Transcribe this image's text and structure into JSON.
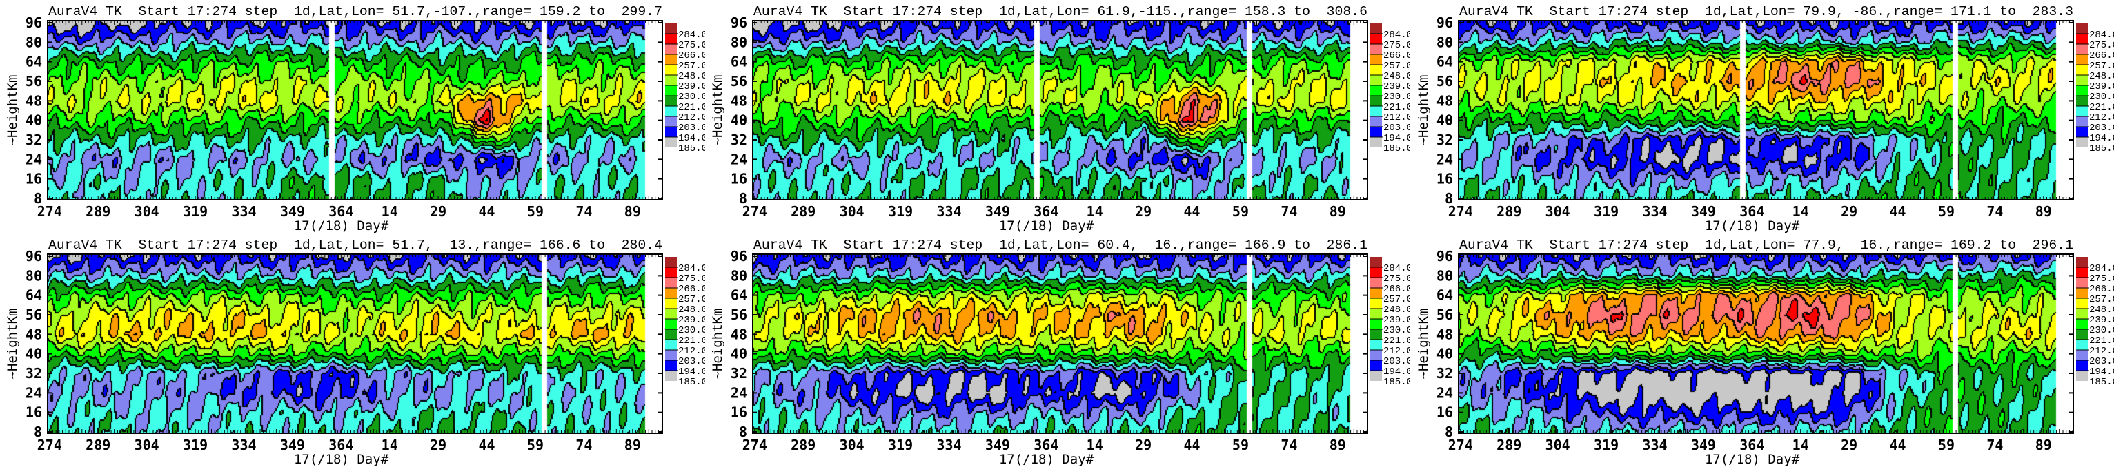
{
  "colorbar": {
    "levels": [
      185.0,
      194.0,
      203.0,
      212.0,
      221.0,
      230.0,
      239.0,
      248.0,
      257.0,
      266.0,
      275.0,
      284.0
    ],
    "labels": [
      "185.0",
      "194.0",
      "203.0",
      "212.0",
      "221.0",
      "230.0",
      "239.0",
      "248.0",
      "257.0",
      "266.0",
      "275.0",
      "284.0"
    ],
    "colors": [
      "#c8c8c8",
      "#0000ff",
      "#8484f0",
      "#40ffe8",
      "#12a012",
      "#00ff00",
      "#a6ff1c",
      "#ffff00",
      "#ff9c00",
      "#ff7474",
      "#ff0000",
      "#a82424"
    ]
  },
  "chart_data": [
    {
      "type": "heatmap",
      "title": "AuraV4 TK  Start 17:274 step  1d,Lat,Lon= 51.7,-107.,range= 159.2 to  299.7",
      "xlabel": "17(/18) Day#",
      "ylabel": "~HeightKm",
      "gaps": [
        [
          360,
          362
        ],
        [
          425.5,
          427.5
        ]
      ],
      "z": [
        [
          188,
          188,
          192,
          196,
          196,
          196,
          198,
          196,
          196,
          194,
          196,
          196,
          196
        ],
        [
          206,
          208,
          210,
          212,
          214,
          214,
          212,
          212,
          212,
          210,
          214,
          214,
          214
        ],
        [
          230,
          230,
          228,
          232,
          234,
          235,
          230,
          230,
          228,
          226,
          232,
          234,
          232
        ],
        [
          240,
          241,
          242,
          244,
          246,
          244,
          242,
          240,
          238,
          236,
          244,
          244,
          244
        ],
        [
          244,
          246,
          248,
          250,
          252,
          248,
          246,
          244,
          246,
          266,
          250,
          250,
          252
        ],
        [
          234,
          236,
          236,
          236,
          234,
          232,
          234,
          232,
          230,
          278,
          232,
          234,
          236
        ],
        [
          222,
          220,
          221,
          222,
          220,
          218,
          216,
          216,
          210,
          238,
          218,
          216,
          218
        ],
        [
          210,
          208,
          208,
          210,
          210,
          212,
          210,
          206,
          202,
          196,
          208,
          210,
          212
        ],
        [
          215,
          216,
          214,
          216,
          218,
          222,
          224,
          218,
          222,
          206,
          216,
          218,
          218
        ],
        [
          218,
          216,
          218,
          216,
          218,
          224,
          226,
          220,
          224,
          212,
          218,
          218,
          218
        ]
      ]
    },
    {
      "type": "heatmap",
      "title": "AuraV4 TK  Start 17:274 step  1d,Lat,Lon= 61.9,-115.,range= 158.3 to  308.6",
      "xlabel": "17(/18) Day#",
      "ylabel": "~HeightKm",
      "gaps": [
        [
          360,
          362
        ],
        [
          425.5,
          427.5
        ]
      ],
      "z": [
        [
          190,
          190,
          194,
          196,
          198,
          196,
          198,
          198,
          198,
          196,
          196,
          196,
          196
        ],
        [
          208,
          208,
          210,
          212,
          214,
          212,
          212,
          210,
          210,
          210,
          212,
          214,
          214
        ],
        [
          232,
          232,
          232,
          236,
          238,
          236,
          232,
          232,
          230,
          228,
          234,
          236,
          236
        ],
        [
          242,
          244,
          246,
          248,
          250,
          248,
          244,
          242,
          240,
          240,
          246,
          246,
          246
        ],
        [
          244,
          246,
          250,
          252,
          252,
          250,
          246,
          244,
          246,
          270,
          248,
          250,
          250
        ],
        [
          234,
          234,
          236,
          236,
          234,
          232,
          230,
          230,
          228,
          282,
          232,
          232,
          234
        ],
        [
          222,
          222,
          222,
          222,
          220,
          218,
          216,
          216,
          208,
          236,
          218,
          220,
          218
        ],
        [
          210,
          210,
          210,
          212,
          212,
          214,
          212,
          208,
          200,
          198,
          210,
          212,
          212
        ],
        [
          216,
          216,
          216,
          218,
          220,
          222,
          224,
          218,
          222,
          208,
          216,
          218,
          218
        ],
        [
          218,
          218,
          218,
          218,
          220,
          224,
          226,
          222,
          224,
          214,
          218,
          220,
          220
        ]
      ]
    },
    {
      "type": "heatmap",
      "title": "AuraV4 TK  Start 17:274 step  1d,Lat,Lon= 79.9, -86.,range= 171.1 to  283.3",
      "xlabel": "17(/18) Day#",
      "ylabel": "~HeightKm",
      "gaps": [
        [
          360,
          362
        ],
        [
          425.5,
          427.5
        ]
      ],
      "z": [
        [
          196,
          196,
          198,
          198,
          198,
          198,
          198,
          196,
          196,
          196,
          198,
          198,
          198
        ],
        [
          214,
          214,
          216,
          218,
          220,
          218,
          218,
          216,
          214,
          214,
          218,
          220,
          220
        ],
        [
          240,
          242,
          246,
          248,
          252,
          250,
          256,
          262,
          262,
          250,
          244,
          244,
          246
        ],
        [
          246,
          248,
          250,
          252,
          256,
          256,
          262,
          270,
          268,
          256,
          248,
          250,
          252
        ],
        [
          244,
          244,
          246,
          246,
          248,
          248,
          250,
          254,
          252,
          250,
          244,
          242,
          242
        ],
        [
          228,
          228,
          228,
          228,
          230,
          230,
          232,
          236,
          236,
          240,
          234,
          232,
          230
        ],
        [
          216,
          212,
          206,
          204,
          198,
          196,
          200,
          200,
          202,
          214,
          222,
          222,
          222
        ],
        [
          214,
          208,
          202,
          198,
          192,
          190,
          198,
          194,
          200,
          214,
          222,
          222,
          220
        ],
        [
          218,
          216,
          212,
          210,
          208,
          210,
          214,
          210,
          212,
          222,
          224,
          222,
          218
        ],
        [
          220,
          220,
          218,
          216,
          218,
          220,
          222,
          220,
          222,
          226,
          226,
          224,
          220
        ]
      ]
    },
    {
      "type": "heatmap",
      "title": "AuraV4 TK  Start 17:274 step  1d,Lat,Lon= 51.7,  13.,range= 166.6 to  280.4",
      "xlabel": "17(/18) Day#",
      "ylabel": "~HeightKm",
      "gaps": [
        [
          425.5,
          427.5
        ]
      ],
      "z": [
        [
          194,
          196,
          196,
          198,
          198,
          198,
          196,
          196,
          198,
          198,
          198,
          198,
          198
        ],
        [
          210,
          212,
          214,
          214,
          214,
          214,
          212,
          212,
          214,
          214,
          214,
          216,
          216
        ],
        [
          234,
          236,
          238,
          238,
          240,
          238,
          232,
          236,
          236,
          234,
          236,
          236,
          236
        ],
        [
          246,
          250,
          252,
          254,
          252,
          250,
          244,
          248,
          250,
          246,
          248,
          250,
          250
        ],
        [
          248,
          256,
          258,
          256,
          256,
          254,
          246,
          252,
          258,
          250,
          256,
          258,
          258
        ],
        [
          232,
          234,
          236,
          238,
          238,
          236,
          232,
          236,
          238,
          236,
          236,
          236,
          236
        ],
        [
          214,
          212,
          212,
          210,
          206,
          202,
          200,
          210,
          212,
          214,
          218,
          216,
          216
        ],
        [
          210,
          210,
          210,
          208,
          204,
          200,
          200,
          208,
          210,
          212,
          214,
          214,
          214
        ],
        [
          216,
          216,
          214,
          214,
          214,
          214,
          212,
          216,
          218,
          218,
          216,
          216,
          216
        ],
        [
          218,
          218,
          216,
          216,
          216,
          218,
          216,
          220,
          222,
          222,
          218,
          218,
          218
        ]
      ]
    },
    {
      "type": "heatmap",
      "title": "AuraV4 TK  Start 17:274 step  1d,Lat,Lon= 60.4,  16.,range= 166.9 to  286.1",
      "xlabel": "17(/18) Day#",
      "ylabel": "~HeightKm",
      "gaps": [
        [
          425.5,
          427.5
        ]
      ],
      "z": [
        [
          196,
          198,
          198,
          198,
          198,
          198,
          198,
          198,
          198,
          198,
          198,
          198,
          198
        ],
        [
          212,
          214,
          214,
          214,
          214,
          214,
          214,
          214,
          214,
          214,
          214,
          214,
          216
        ],
        [
          236,
          238,
          242,
          246,
          246,
          246,
          244,
          246,
          246,
          240,
          236,
          236,
          236
        ],
        [
          246,
          252,
          258,
          262,
          262,
          260,
          256,
          262,
          262,
          250,
          244,
          246,
          246
        ],
        [
          246,
          250,
          256,
          258,
          258,
          256,
          252,
          256,
          260,
          248,
          246,
          248,
          248
        ],
        [
          232,
          234,
          236,
          236,
          238,
          236,
          234,
          236,
          238,
          236,
          234,
          234,
          234
        ],
        [
          214,
          210,
          204,
          198,
          196,
          196,
          204,
          198,
          198,
          212,
          222,
          220,
          220
        ],
        [
          212,
          206,
          198,
          192,
          190,
          190,
          200,
          190,
          194,
          210,
          222,
          220,
          218
        ],
        [
          218,
          214,
          210,
          206,
          206,
          208,
          212,
          208,
          210,
          220,
          224,
          220,
          218
        ],
        [
          220,
          218,
          216,
          216,
          216,
          218,
          220,
          218,
          220,
          224,
          224,
          222,
          220
        ]
      ]
    },
    {
      "type": "heatmap",
      "title": "AuraV4 TK  Start 17:274 step  1d,Lat,Lon= 77.9,  16.,range= 169.2 to  296.1",
      "xlabel": "17(/18) Day#",
      "ylabel": "~HeightKm",
      "gaps": [
        [
          425.5,
          427.5
        ]
      ],
      "z": [
        [
          196,
          198,
          198,
          198,
          198,
          198,
          198,
          198,
          198,
          200,
          200,
          200,
          200
        ],
        [
          212,
          214,
          216,
          216,
          216,
          216,
          216,
          216,
          216,
          220,
          222,
          222,
          222
        ],
        [
          238,
          244,
          252,
          260,
          262,
          262,
          264,
          266,
          262,
          246,
          240,
          240,
          240
        ],
        [
          244,
          252,
          262,
          272,
          270,
          268,
          270,
          276,
          270,
          250,
          246,
          248,
          248
        ],
        [
          240,
          246,
          254,
          262,
          260,
          258,
          262,
          266,
          262,
          248,
          248,
          250,
          252
        ],
        [
          226,
          228,
          232,
          236,
          238,
          236,
          236,
          238,
          238,
          238,
          236,
          236,
          236
        ],
        [
          210,
          204,
          198,
          192,
          190,
          190,
          190,
          190,
          192,
          214,
          224,
          224,
          224
        ],
        [
          212,
          204,
          196,
          188,
          186,
          186,
          186,
          186,
          190,
          214,
          226,
          224,
          222
        ],
        [
          218,
          214,
          208,
          200,
          198,
          198,
          198,
          198,
          200,
          220,
          226,
          224,
          220
        ],
        [
          220,
          218,
          216,
          214,
          214,
          214,
          214,
          214,
          216,
          224,
          226,
          224,
          222
        ]
      ]
    }
  ],
  "axes": {
    "x_days": [
      274,
      289,
      304,
      319,
      334,
      349,
      364,
      379,
      394,
      409,
      424,
      439,
      454
    ],
    "x_tick_labels": [
      "274",
      "289",
      "304",
      "319",
      "334",
      "349",
      "364",
      "14",
      "29",
      "44",
      "59",
      "74",
      "89"
    ],
    "xlim": [
      273.4,
      463.2
    ],
    "data_end_day": 457.5,
    "y_levels": [
      96,
      80,
      64,
      56,
      48,
      40,
      32,
      24,
      16,
      8
    ],
    "y_tick_labels": [
      "96",
      "80",
      "64",
      "56",
      "48",
      "40",
      "32",
      "24",
      "16",
      "8"
    ]
  }
}
